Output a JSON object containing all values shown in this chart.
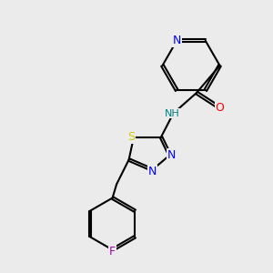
{
  "bg_color": "#ebebeb",
  "bond_color": "#000000",
  "bond_width": 1.5,
  "atom_colors": {
    "N": "#0000ff",
    "O": "#ff0000",
    "S": "#cccc00",
    "F": "#aa00aa",
    "H_label": "#008080",
    "C": "#000000"
  },
  "font_size": 9,
  "font_size_small": 8
}
